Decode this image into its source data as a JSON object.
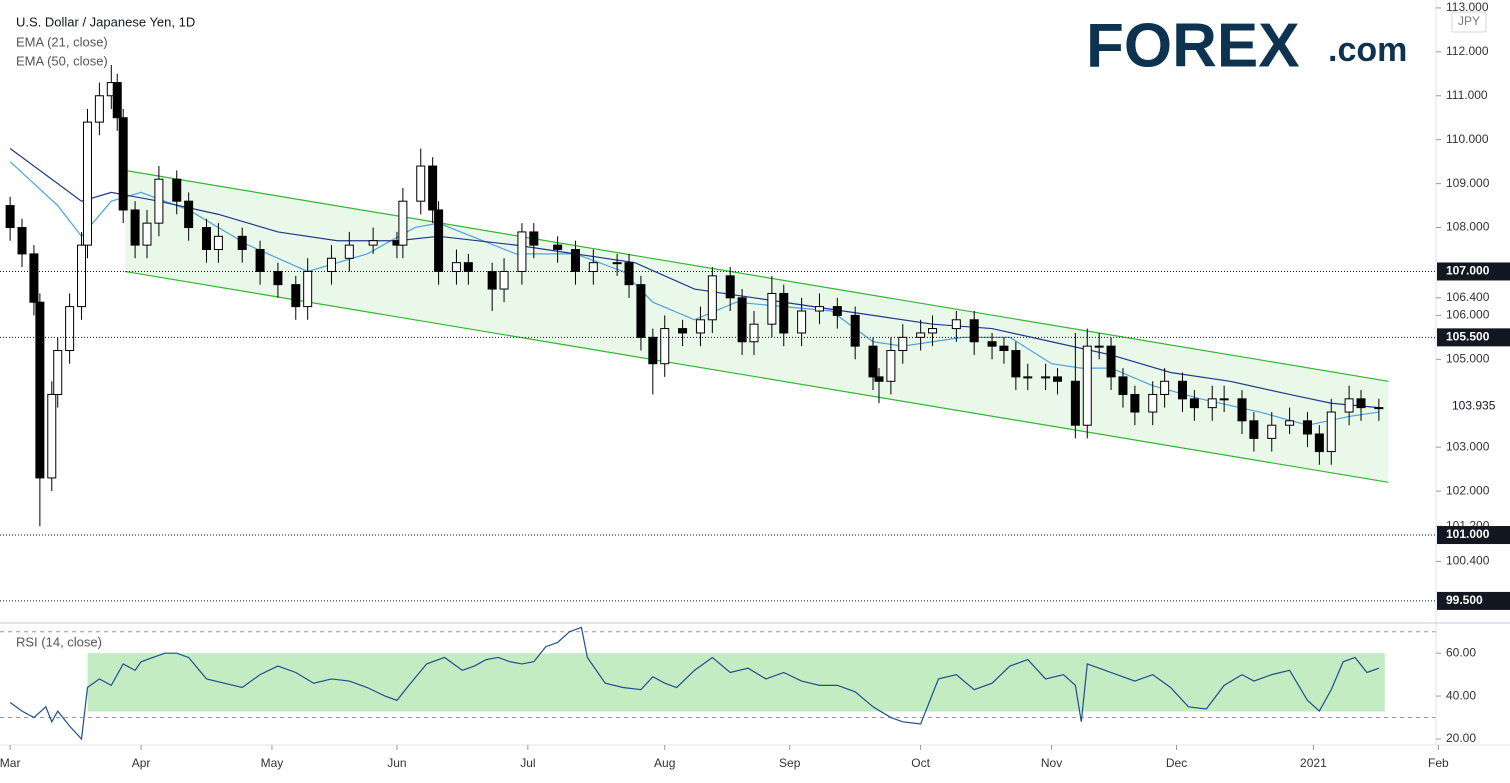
{
  "chart_data": {
    "type": "candlestick",
    "title": "U.S. Dollar / Japanese Yen, 1D",
    "currency": "JPY",
    "brand": {
      "name": "FOREX",
      "suffix": ".com"
    },
    "xticks": [
      {
        "value": 0,
        "label": "Mar"
      },
      {
        "value": 22,
        "label": "Apr"
      },
      {
        "value": 44,
        "label": "May"
      },
      {
        "value": 65,
        "label": "Jun"
      },
      {
        "value": 87,
        "label": "Jul"
      },
      {
        "value": 110,
        "label": "Aug"
      },
      {
        "value": 131,
        "label": "Sep"
      },
      {
        "value": 153,
        "label": "Oct"
      },
      {
        "value": 175,
        "label": "Nov"
      },
      {
        "value": 196,
        "label": "Dec"
      },
      {
        "value": 219,
        "label": "2021"
      },
      {
        "value": 240,
        "label": "Feb"
      }
    ],
    "xlim": [
      -1.7,
      239.6
    ],
    "ylim": [
      99.02,
      113.18
    ],
    "yticks": [
      {
        "value": 113,
        "label": "113.000"
      },
      {
        "value": 112,
        "label": "112.000"
      },
      {
        "value": 111,
        "label": "111.000"
      },
      {
        "value": 110,
        "label": "110.000"
      },
      {
        "value": 109,
        "label": "109.000"
      },
      {
        "value": 108,
        "label": "108.000"
      },
      {
        "value": 106.4,
        "label": "106.400"
      },
      {
        "value": 106,
        "label": "106.000"
      },
      {
        "value": 105,
        "label": "105.000"
      },
      {
        "value": 103,
        "label": "103.000"
      },
      {
        "value": 102,
        "label": "102.000"
      },
      {
        "value": 101.2,
        "label": "101.200"
      },
      {
        "value": 100.4,
        "label": "100.400"
      }
    ],
    "levels": [
      {
        "value": 107,
        "label": "107.000"
      },
      {
        "value": 105.5,
        "label": "105.500"
      },
      {
        "value": 101,
        "label": "101.000"
      },
      {
        "value": 99.5,
        "label": "99.500"
      }
    ],
    "last_price": 103.935,
    "up_color": "#ffffff",
    "down_color": "#000000",
    "candles": [
      [
        0,
        108.5,
        108.7,
        107.7,
        108.0
      ],
      [
        2,
        108.0,
        108.2,
        107.1,
        107.4
      ],
      [
        4,
        107.4,
        107.6,
        106.0,
        106.3
      ],
      [
        5,
        106.3,
        106.5,
        101.2,
        102.3
      ],
      [
        7,
        102.3,
        104.5,
        102.0,
        104.2
      ],
      [
        8,
        104.2,
        105.5,
        103.9,
        105.2
      ],
      [
        10,
        105.2,
        106.5,
        104.9,
        106.2
      ],
      [
        12,
        106.2,
        107.9,
        105.9,
        107.6
      ],
      [
        13,
        107.6,
        110.7,
        107.3,
        110.4
      ],
      [
        15,
        110.4,
        111.3,
        110.1,
        111.0
      ],
      [
        17,
        111.0,
        111.7,
        110.7,
        111.3
      ],
      [
        18,
        111.3,
        111.5,
        110.2,
        110.5
      ],
      [
        19,
        110.5,
        110.7,
        108.1,
        108.4
      ],
      [
        21,
        108.4,
        108.6,
        107.3,
        107.6
      ],
      [
        23,
        107.6,
        108.4,
        107.3,
        108.1
      ],
      [
        25,
        108.1,
        109.4,
        107.8,
        109.1
      ],
      [
        28,
        109.1,
        109.3,
        108.3,
        108.6
      ],
      [
        30,
        108.6,
        108.8,
        107.7,
        108.0
      ],
      [
        33,
        108.0,
        108.2,
        107.2,
        107.5
      ],
      [
        35,
        107.5,
        108.1,
        107.2,
        107.8
      ],
      [
        39,
        107.8,
        108.0,
        107.2,
        107.5
      ],
      [
        42,
        107.5,
        107.7,
        106.7,
        107.0
      ],
      [
        45,
        107.0,
        107.2,
        106.4,
        106.7
      ],
      [
        48,
        106.7,
        106.9,
        105.9,
        106.2
      ],
      [
        50,
        106.2,
        107.3,
        105.9,
        107.0
      ],
      [
        54,
        107.0,
        107.6,
        106.7,
        107.3
      ],
      [
        57,
        107.3,
        107.9,
        107.0,
        107.6
      ],
      [
        61,
        107.6,
        108.0,
        107.4,
        107.7
      ],
      [
        65,
        107.7,
        107.9,
        107.3,
        107.6
      ],
      [
        66,
        107.6,
        108.9,
        107.3,
        108.6
      ],
      [
        69,
        108.6,
        109.8,
        108.3,
        109.4
      ],
      [
        71,
        109.4,
        109.6,
        108.1,
        108.4
      ],
      [
        72,
        108.4,
        108.6,
        106.7,
        107.0
      ],
      [
        75,
        107.0,
        107.5,
        106.7,
        107.2
      ],
      [
        77,
        107.2,
        107.4,
        106.7,
        107.0
      ],
      [
        81,
        107.0,
        107.2,
        106.1,
        106.6
      ],
      [
        83,
        106.6,
        107.3,
        106.3,
        107.0
      ],
      [
        86,
        107.0,
        108.1,
        106.7,
        107.9
      ],
      [
        88,
        107.9,
        108.1,
        107.3,
        107.6
      ],
      [
        92,
        107.6,
        107.8,
        107.2,
        107.5
      ],
      [
        95,
        107.5,
        107.7,
        106.7,
        107.0
      ],
      [
        98,
        107.0,
        107.5,
        106.7,
        107.2
      ],
      [
        102,
        107.2,
        107.4,
        106.9,
        107.2
      ],
      [
        104,
        107.2,
        107.4,
        106.4,
        106.7
      ],
      [
        106,
        106.7,
        106.9,
        105.2,
        105.5
      ],
      [
        108,
        105.5,
        105.7,
        104.2,
        104.9
      ],
      [
        110,
        104.9,
        106.0,
        104.6,
        105.7
      ],
      [
        113,
        105.7,
        105.9,
        105.3,
        105.6
      ],
      [
        116,
        105.6,
        106.2,
        105.3,
        105.9
      ],
      [
        118,
        105.9,
        107.1,
        105.6,
        106.9
      ],
      [
        121,
        106.9,
        107.1,
        106.1,
        106.4
      ],
      [
        123,
        106.4,
        106.6,
        105.1,
        105.4
      ],
      [
        125,
        105.4,
        106.1,
        105.1,
        105.8
      ],
      [
        128,
        105.8,
        106.9,
        105.5,
        106.5
      ],
      [
        130,
        106.5,
        106.7,
        105.3,
        105.6
      ],
      [
        133,
        105.6,
        106.4,
        105.3,
        106.1
      ],
      [
        136,
        106.1,
        106.5,
        105.8,
        106.2
      ],
      [
        139,
        106.2,
        106.4,
        105.7,
        106.0
      ],
      [
        142,
        106.0,
        106.2,
        105.0,
        105.3
      ],
      [
        145,
        105.3,
        105.5,
        104.3,
        104.6
      ],
      [
        146,
        104.6,
        104.8,
        104.0,
        104.5
      ],
      [
        148,
        104.5,
        105.5,
        104.2,
        105.2
      ],
      [
        150,
        105.2,
        105.8,
        104.9,
        105.5
      ],
      [
        153,
        105.5,
        105.9,
        105.2,
        105.6
      ],
      [
        155,
        105.6,
        106.0,
        105.3,
        105.7
      ],
      [
        159,
        105.7,
        106.1,
        105.4,
        105.9
      ],
      [
        162,
        105.9,
        106.1,
        105.1,
        105.4
      ],
      [
        165,
        105.4,
        105.6,
        105.0,
        105.3
      ],
      [
        167,
        105.3,
        105.5,
        104.9,
        105.2
      ],
      [
        169,
        105.2,
        105.4,
        104.3,
        104.6
      ],
      [
        171,
        104.6,
        104.9,
        104.3,
        104.6
      ],
      [
        174,
        104.6,
        104.9,
        104.3,
        104.6
      ],
      [
        176,
        104.6,
        104.8,
        104.2,
        104.5
      ],
      [
        179,
        104.5,
        105.6,
        103.2,
        103.5
      ],
      [
        181,
        103.5,
        105.7,
        103.2,
        105.3
      ],
      [
        183,
        105.3,
        105.6,
        105.0,
        105.3
      ],
      [
        185,
        105.3,
        105.5,
        104.3,
        104.6
      ],
      [
        187,
        104.6,
        104.8,
        103.9,
        104.2
      ],
      [
        189,
        104.2,
        104.4,
        103.5,
        103.8
      ],
      [
        192,
        103.8,
        104.5,
        103.5,
        104.2
      ],
      [
        194,
        104.2,
        104.8,
        103.9,
        104.5
      ],
      [
        197,
        104.5,
        104.7,
        103.8,
        104.1
      ],
      [
        199,
        104.1,
        104.3,
        103.6,
        103.9
      ],
      [
        202,
        103.9,
        104.4,
        103.6,
        104.1
      ],
      [
        204,
        104.1,
        104.4,
        103.8,
        104.1
      ],
      [
        207,
        104.1,
        104.3,
        103.3,
        103.6
      ],
      [
        209,
        103.6,
        103.8,
        102.9,
        103.2
      ],
      [
        212,
        103.2,
        103.8,
        102.9,
        103.5
      ],
      [
        215,
        103.5,
        103.9,
        103.3,
        103.6
      ],
      [
        218,
        103.6,
        103.8,
        103.0,
        103.3
      ],
      [
        220,
        103.3,
        103.5,
        102.6,
        102.9
      ],
      [
        222,
        102.9,
        104.1,
        102.6,
        103.8
      ],
      [
        225,
        103.8,
        104.4,
        103.5,
        104.1
      ],
      [
        227,
        104.1,
        104.3,
        103.6,
        103.9
      ],
      [
        230,
        103.9,
        104.1,
        103.6,
        103.9
      ]
    ],
    "series": [
      {
        "name": "EMA (21, close)",
        "color": "#4da3e0",
        "x": [
          0,
          8,
          12,
          17,
          22,
          30,
          40,
          50,
          60,
          68,
          72,
          85,
          95,
          103,
          108,
          115,
          122,
          130,
          138,
          145,
          150,
          160,
          168,
          175,
          180,
          185,
          192,
          200,
          210,
          218,
          225,
          230
        ],
        "values": [
          109.5,
          108.5,
          107.8,
          108.6,
          108.8,
          108.4,
          107.6,
          107.0,
          107.4,
          108.0,
          108.1,
          107.4,
          107.4,
          107.0,
          106.3,
          105.9,
          106.3,
          106.2,
          106.1,
          105.4,
          105.3,
          105.5,
          105.5,
          104.9,
          104.8,
          104.8,
          104.4,
          104.1,
          103.8,
          103.5,
          103.7,
          103.8
        ]
      },
      {
        "name": "EMA (50, close)",
        "color": "#1f3a8a",
        "x": [
          0,
          8,
          12,
          17,
          25,
          35,
          45,
          55,
          65,
          72,
          85,
          95,
          105,
          115,
          125,
          135,
          145,
          155,
          165,
          175,
          185,
          195,
          205,
          215,
          222,
          230
        ],
        "values": [
          109.8,
          109.0,
          108.6,
          108.8,
          108.6,
          108.3,
          107.9,
          107.7,
          107.7,
          107.8,
          107.6,
          107.4,
          107.2,
          106.6,
          106.4,
          106.2,
          106.0,
          105.8,
          105.7,
          105.4,
          105.1,
          104.7,
          104.5,
          104.2,
          104.0,
          103.9
        ]
      }
    ],
    "channel": {
      "color": "#2eb82e",
      "x": [
        19.3,
        231.6
      ],
      "upper": [
        109.3,
        104.5
      ],
      "lower": [
        107.0,
        102.2
      ]
    },
    "rsi": {
      "name": "RSI (14, close)",
      "color": "#1e4f8f",
      "ylim": [
        17.2,
        73.6
      ],
      "yticks": [
        {
          "value": 60,
          "label": "60.00"
        },
        {
          "value": 40,
          "label": "40.00"
        },
        {
          "value": 20,
          "label": "20.00"
        }
      ],
      "bounds": [
        30,
        70
      ],
      "band": {
        "x": [
          13,
          231
        ],
        "y": [
          32.8,
          60
        ],
        "color": "#c3ecc3"
      },
      "x": [
        0,
        2,
        4,
        6,
        7,
        8,
        10,
        12,
        13,
        15,
        17,
        19,
        21,
        22,
        24,
        26,
        28,
        30,
        33,
        36,
        39,
        42,
        45,
        48,
        51,
        54,
        57,
        60,
        63,
        65,
        67,
        70,
        73,
        76,
        78,
        80,
        82,
        84,
        86,
        88,
        90,
        92,
        94,
        96,
        97,
        100,
        103,
        106,
        108,
        110,
        112,
        115,
        118,
        121,
        124,
        127,
        130,
        133,
        136,
        139,
        142,
        145,
        148,
        150,
        153,
        156,
        159,
        162,
        165,
        168,
        171,
        174,
        177,
        179,
        180,
        181,
        183,
        186,
        189,
        192,
        195,
        198,
        201,
        204,
        207,
        209,
        212,
        215,
        218,
        220,
        222,
        224,
        226,
        228,
        230
      ],
      "values": [
        37,
        33,
        30,
        35,
        28,
        33,
        26,
        20,
        44,
        48,
        45,
        55,
        52,
        56,
        58,
        60,
        60,
        58,
        48,
        46,
        44,
        50,
        54,
        51,
        46,
        48,
        47,
        44,
        40,
        38,
        45,
        55,
        58,
        52,
        54,
        57,
        58,
        56,
        55,
        56,
        63,
        65,
        70,
        72,
        58,
        46,
        44,
        43,
        49,
        46,
        44,
        52,
        58,
        51,
        53,
        48,
        51,
        47,
        45,
        45,
        42,
        35,
        30,
        28,
        27,
        48,
        50,
        43,
        46,
        54,
        57,
        48,
        50,
        45,
        28,
        55,
        53,
        50,
        47,
        50,
        44,
        35,
        34,
        45,
        50,
        47,
        50,
        52,
        38,
        33,
        43,
        56,
        58,
        51,
        53
      ]
    }
  }
}
